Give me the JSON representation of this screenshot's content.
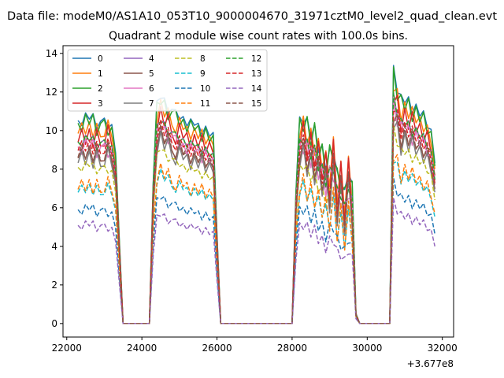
{
  "suptitle": "Data file: modeM0/AS1A10_053T10_9000004670_31971cztM0_level2_quad_clean.evt",
  "chart_data": {
    "type": "line",
    "title": "Quadrant 2 module wise count rates with 100.0s bins.",
    "xlabel": "",
    "ylabel": "",
    "x_offset_label": "+3.677e8",
    "xlim": [
      21900,
      32300
    ],
    "ylim": [
      -0.7,
      14.4
    ],
    "xticks": [
      22000,
      24000,
      26000,
      28000,
      30000,
      32000
    ],
    "yticks": [
      0,
      2,
      4,
      6,
      8,
      10,
      12,
      14
    ],
    "grid": false,
    "legend_position": "top-left",
    "legend_columns": 4,
    "colors": [
      "#1f77b4",
      "#ff7f0e",
      "#2ca02c",
      "#d62728",
      "#9467bd",
      "#8c564b",
      "#e377c2",
      "#7f7f7f",
      "#bcbd22",
      "#17becf",
      "#1f77b4",
      "#ff7f0e",
      "#2ca02c",
      "#d62728",
      "#9467bd",
      "#8c564b"
    ],
    "series": [
      {
        "name": "0",
        "dashed": false,
        "level": 10.4
      },
      {
        "name": "1",
        "dashed": false,
        "level": 10.0
      },
      {
        "name": "2",
        "dashed": false,
        "level": 10.2
      },
      {
        "name": "3",
        "dashed": false,
        "level": 9.6
      },
      {
        "name": "4",
        "dashed": false,
        "level": 9.3
      },
      {
        "name": "5",
        "dashed": false,
        "level": 8.7
      },
      {
        "name": "6",
        "dashed": false,
        "level": 9.0
      },
      {
        "name": "7",
        "dashed": false,
        "level": 8.5
      },
      {
        "name": "8",
        "dashed": true,
        "level": 8.0
      },
      {
        "name": "9",
        "dashed": true,
        "level": 6.9
      },
      {
        "name": "10",
        "dashed": true,
        "level": 5.8
      },
      {
        "name": "11",
        "dashed": true,
        "level": 7.1
      },
      {
        "name": "12",
        "dashed": true,
        "level": 9.3
      },
      {
        "name": "13",
        "dashed": true,
        "level": 9.1
      },
      {
        "name": "14",
        "dashed": true,
        "level": 5.0
      },
      {
        "name": "15",
        "dashed": true,
        "level": 8.8
      }
    ],
    "x": [
      22300,
      22400,
      22500,
      22600,
      22700,
      22800,
      22900,
      23000,
      23100,
      23200,
      23300,
      23400,
      23500,
      23600,
      23700,
      23800,
      23900,
      24000,
      24100,
      24200,
      24300,
      24400,
      24500,
      24600,
      24700,
      24800,
      24900,
      25000,
      25100,
      25200,
      25300,
      25400,
      25500,
      25600,
      25700,
      25800,
      25900,
      26000,
      26100,
      26200,
      26300,
      26400,
      26500,
      26600,
      26700,
      26800,
      26900,
      27000,
      27100,
      27200,
      27300,
      27400,
      27500,
      27600,
      27700,
      27800,
      27900,
      28000,
      28100,
      28200,
      28300,
      28400,
      28500,
      28600,
      28700,
      28800,
      28900,
      29000,
      29100,
      29200,
      29300,
      29400,
      29500,
      29600,
      29700,
      29800,
      29900,
      30000,
      30100,
      30200,
      30300,
      30400,
      30500,
      30600,
      30700,
      30800,
      30900,
      31000,
      31100,
      31200,
      31300,
      31400,
      31500,
      31600,
      31700,
      31800
    ],
    "profile": [
      1.0,
      1.01,
      1.02,
      1.03,
      1.01,
      1.0,
      0.99,
      1.0,
      1.01,
      0.98,
      0.85,
      0.42,
      0,
      0,
      0,
      0,
      0,
      0,
      0,
      0,
      0.7,
      1.08,
      1.14,
      1.1,
      1.08,
      1.05,
      1.03,
      1.04,
      1.02,
      1.0,
      0.99,
      1.0,
      0.98,
      0.97,
      0.96,
      0.95,
      0.94,
      0.45,
      0,
      0,
      0,
      0,
      0,
      0,
      0,
      0,
      0,
      0,
      0,
      0,
      0,
      0,
      0,
      0,
      0,
      0,
      0,
      0,
      0.65,
      1.0,
      1.03,
      0.98,
      0.96,
      0.94,
      0.9,
      0.85,
      0.82,
      0.8,
      0.9,
      0.7,
      0.76,
      0.62,
      0.8,
      0.66,
      0.05,
      0,
      0,
      0,
      0,
      0,
      0,
      0,
      0,
      0,
      1.25,
      1.18,
      1.1,
      1.12,
      1.1,
      1.08,
      1.07,
      1.05,
      1.03,
      1.0,
      0.95,
      0.8
    ],
    "wiggle": [
      0.02,
      -0.04,
      0.05,
      -0.02,
      0.06,
      -0.05,
      0.03,
      0.04,
      -0.06,
      0.02,
      0.0,
      0.0,
      0,
      0,
      0,
      0,
      0,
      0,
      0,
      0,
      0.0,
      0.05,
      -0.03,
      0.04,
      -0.05,
      0.03,
      0.06,
      -0.04,
      0.02,
      -0.03,
      0.05,
      -0.02,
      0.03,
      -0.05,
      0.04,
      -0.03,
      0.02,
      0.0,
      0,
      0,
      0,
      0,
      0,
      0,
      0,
      0,
      0,
      0,
      0,
      0,
      0,
      0,
      0,
      0,
      0,
      0,
      0,
      0,
      0.0,
      0.05,
      -0.06,
      0.08,
      -0.07,
      0.09,
      -0.08,
      0.07,
      -0.1,
      0.12,
      -0.09,
      0.1,
      -0.11,
      0.08,
      -0.09,
      0.07,
      0.0,
      0,
      0,
      0,
      0,
      0,
      0,
      0,
      0,
      0,
      0.06,
      -0.05,
      0.07,
      -0.04,
      0.05,
      -0.06,
      0.04,
      -0.03,
      0.05,
      -0.04,
      0.03,
      0.0
    ]
  }
}
